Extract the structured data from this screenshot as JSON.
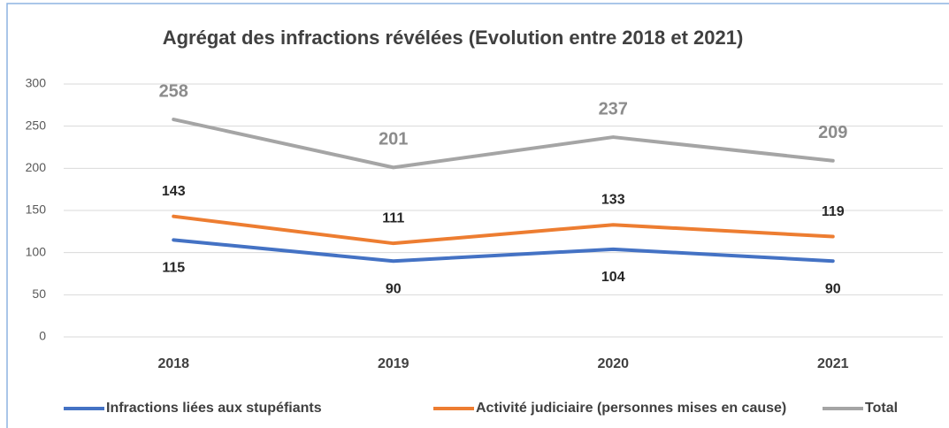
{
  "chart_data": {
    "type": "line",
    "title": "Agrégat des infractions révélées (Evolution entre 2018 et 2021)",
    "categories": [
      "2018",
      "2019",
      "2020",
      "2021"
    ],
    "series": [
      {
        "name": "Infractions liées aux stupéfiants",
        "color": "#4472c4",
        "values": [
          115,
          90,
          104,
          90
        ]
      },
      {
        "name": "Activité judiciaire (personnes mises en cause)",
        "color": "#ed7d31",
        "values": [
          143,
          111,
          133,
          119
        ]
      },
      {
        "name": "Total",
        "color": "#a5a5a5",
        "values": [
          258,
          201,
          237,
          209
        ]
      }
    ],
    "ylim": [
      0,
      300
    ],
    "yticks": [
      0,
      50,
      100,
      150,
      200,
      250,
      300
    ],
    "grid": true,
    "legend": "bottom"
  }
}
